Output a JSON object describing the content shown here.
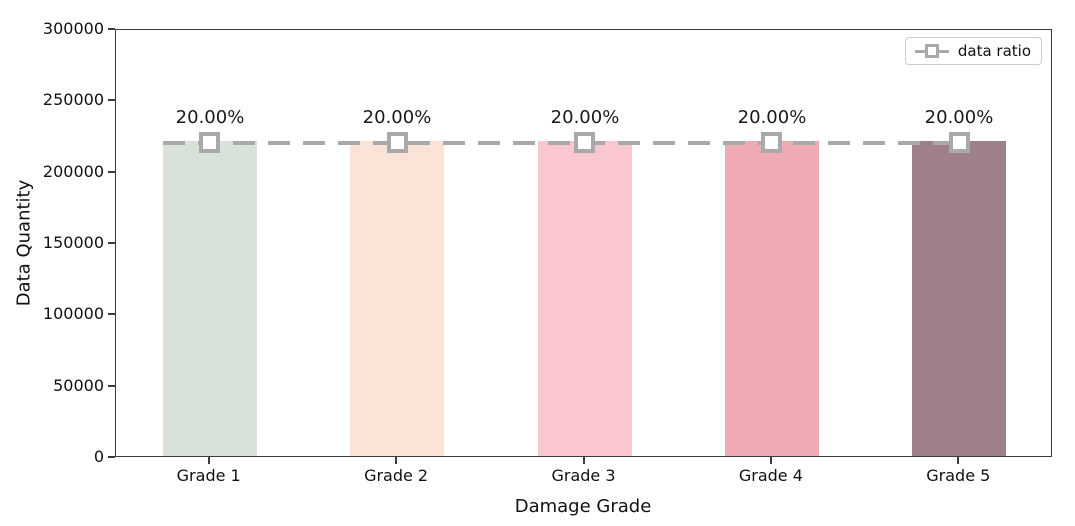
{
  "chart_data": {
    "type": "bar",
    "title": "",
    "xlabel": "Damage Grade",
    "ylabel": "Data Quantity",
    "categories": [
      "Grade 1",
      "Grade 2",
      "Grade 3",
      "Grade 4",
      "Grade 5"
    ],
    "values": [
      221000,
      221000,
      221000,
      221000,
      221000
    ],
    "bar_colors": [
      "#d8e2d9",
      "#fce3d7",
      "#fac7d1",
      "#f0aab4",
      "#9f8089"
    ],
    "bar_labels": [
      "20.00%",
      "20.00%",
      "20.00%",
      "20.00%",
      "20.00%"
    ],
    "ylim": [
      0,
      300000
    ],
    "yticks": [
      0,
      50000,
      100000,
      150000,
      200000,
      250000,
      300000
    ],
    "grid": false,
    "legend": {
      "label": "data ratio",
      "position": "upper right",
      "line_style": "dashed",
      "marker": "hollow-square",
      "line_color": "#a9a9a9"
    },
    "ratio_line": {
      "name": "data ratio",
      "y_value": 221000,
      "percentages": [
        20.0,
        20.0,
        20.0,
        20.0,
        20.0
      ]
    },
    "colors": {
      "spine": "#3c3c3c",
      "text": "#111111",
      "label_text": "#1a1a1a",
      "background": "#ffffff"
    }
  }
}
